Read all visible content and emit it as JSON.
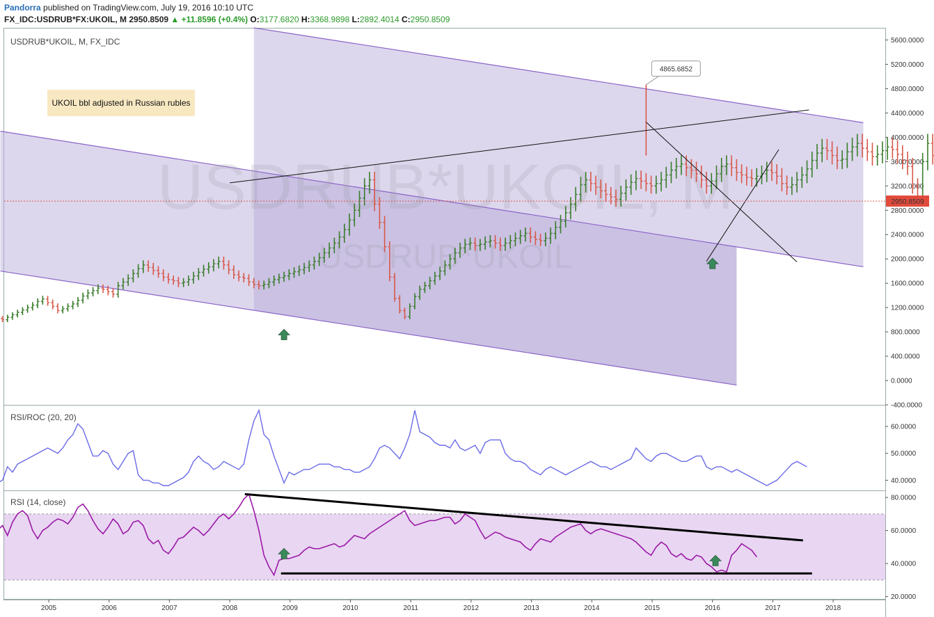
{
  "header": {
    "author": "Pandorra",
    "published": "published on TradingView.com, July 19, 2016 10:10 UTC",
    "symbol": "FX_IDC:USDRUB*FX:UKOIL, M",
    "last": "2950.8509",
    "change_arrow": "▲",
    "change": "+11.8596 (+0.4%)",
    "o_label": "O:",
    "o_value": "3177.6820",
    "h_label": "H:",
    "h_value": "3368.9898",
    "l_label": "L:",
    "l_value": "2892.4014",
    "c_label": "C:",
    "c_value": "2950.8509"
  },
  "annotation": "UKOIL bbl adjusted in Russian rubles",
  "colors": {
    "up": "#3a7d2c",
    "down": "#d8584a",
    "channel_fill": "#b3a6d8",
    "channel_line": "#8a63c8",
    "rsi_roc_line": "#6a6ae8",
    "rsi_line": "#9a1aa8",
    "rsi_band": "#e9d6f2",
    "price_label_bg": "#e24b3c",
    "marker": "#3a8a5a"
  },
  "chart_data": [
    {
      "type": "bar",
      "title": "USDRUB*UKOIL, M, FX_IDC",
      "watermark_symbol": "USDRUB*UKOIL, M",
      "watermark_name": "USDRUB*UKOIL",
      "ylim": [
        -400,
        5800
      ],
      "yticks": [
        "5600.0000",
        "5200.0000",
        "4800.0000",
        "4400.0000",
        "4000.0000",
        "3600.0000",
        "3200.0000",
        "2800.0000",
        "2400.0000",
        "2000.0000",
        "1600.0000",
        "1200.0000",
        "800.0000",
        "400.0000",
        "0.0000",
        "-400.0000"
      ],
      "xlabels": [
        "2005",
        "2006",
        "2007",
        "2008",
        "2009",
        "2010",
        "2011",
        "2012",
        "2013",
        "2014",
        "2015",
        "2016",
        "2017",
        "2018"
      ],
      "last_price": "2950.8509",
      "peak_label": "4865.6852",
      "channel_upper": [
        [
          2008.4,
          5800
        ],
        [
          2018.5,
          4240
        ]
      ],
      "channel_lower": [
        [
          2004.2,
          4100
        ],
        [
          2018.5,
          1870
        ]
      ],
      "channel_outer_low": [
        [
          2004.2,
          1800
        ],
        [
          2016.4,
          -75
        ]
      ],
      "trendlines": [
        [
          [
            2008.0,
            3250
          ],
          [
            2017.6,
            4450
          ]
        ],
        [
          [
            2014.9,
            4250
          ],
          [
            2017.4,
            1950
          ]
        ],
        [
          [
            2015.9,
            1960
          ],
          [
            2017.1,
            3800
          ]
        ]
      ],
      "markers": [
        [
          2008.9,
          750
        ],
        [
          2016.0,
          1920
        ]
      ],
      "peak_point": [
        2014.9,
        4865.6852
      ],
      "ohlc_monthly_close": [
        1020,
        1000,
        1040,
        1080,
        1120,
        1160,
        1200,
        1240,
        1300,
        1340,
        1280,
        1220,
        1150,
        1180,
        1220,
        1260,
        1320,
        1390,
        1440,
        1480,
        1520,
        1500,
        1460,
        1420,
        1560,
        1620,
        1680,
        1760,
        1840,
        1900,
        1860,
        1810,
        1760,
        1700,
        1660,
        1640,
        1600,
        1620,
        1660,
        1720,
        1780,
        1830,
        1870,
        1920,
        1960,
        1900,
        1820,
        1740,
        1700,
        1680,
        1620,
        1580,
        1560,
        1580,
        1620,
        1660,
        1690,
        1720,
        1760,
        1790,
        1820,
        1860,
        1900,
        1960,
        2020,
        2100,
        2180,
        2260,
        2360,
        2480,
        2640,
        2800,
        3000,
        3200,
        3300,
        2900,
        2600,
        2200,
        1700,
        1350,
        1150,
        1050,
        1220,
        1380,
        1500,
        1560,
        1640,
        1720,
        1800,
        1900,
        2000,
        2100,
        2180,
        2240,
        2260,
        2220,
        2240,
        2280,
        2300,
        2260,
        2220,
        2260,
        2300,
        2340,
        2380,
        2420,
        2360,
        2320,
        2300,
        2340,
        2420,
        2520,
        2620,
        2760,
        2900,
        3060,
        3220,
        3300,
        3240,
        3180,
        3120,
        3060,
        3020,
        2980,
        3080,
        3180,
        3260,
        3320,
        3280,
        3240,
        3200,
        3240,
        3300,
        3380,
        3460,
        3520,
        3560,
        3500,
        3460,
        3400,
        3300,
        3200,
        3280,
        3400,
        3520,
        3560,
        3500,
        3420,
        3380,
        3340,
        3320,
        3360,
        3400,
        3460,
        3420,
        3360,
        3240,
        3180,
        3220,
        3300,
        3380,
        3480,
        3620,
        3740,
        3820,
        3780,
        3700,
        3620,
        3640,
        3760,
        3840,
        3900,
        3820,
        3760,
        3680,
        3720,
        3780,
        3840,
        3800,
        3720,
        3620,
        3520,
        3200,
        3000,
        3600,
        3900,
        3700,
        3540,
        3380,
        3400,
        3560,
        3660,
        3500,
        3320,
        3200,
        3080,
        3000,
        2860,
        2640,
        2380,
        2500,
        2700,
        2820,
        2760,
        2900,
        3060,
        3200,
        3260,
        3177,
        2950
      ],
      "ohlc_start": 2004.15
    },
    {
      "type": "line",
      "title": "RSI/ROC (20, 20)",
      "ylim": [
        37,
        67
      ],
      "yticks": [
        "60.0000",
        "50.0000",
        "40.0000"
      ],
      "start": 2004.15,
      "values": [
        39,
        40,
        45,
        43,
        46,
        47,
        48,
        49,
        50,
        51,
        52,
        51,
        50,
        52,
        55,
        57,
        61,
        59,
        54,
        49,
        49,
        51,
        50,
        46,
        44,
        47,
        50,
        51,
        42,
        40,
        40,
        39,
        39,
        38,
        38,
        39,
        40,
        41,
        43,
        47,
        49,
        47,
        46,
        44,
        45,
        47,
        46,
        45,
        44,
        46,
        55,
        62,
        66,
        57,
        55,
        49,
        44,
        39,
        43,
        42,
        43,
        44,
        44,
        45,
        46,
        46,
        46,
        45,
        45,
        44,
        44,
        43,
        43,
        44,
        45,
        48,
        52,
        53,
        52,
        50,
        48,
        52,
        57,
        66,
        58,
        57,
        56,
        54,
        53,
        53,
        52,
        55,
        52,
        51,
        52,
        53,
        50,
        54,
        55,
        55,
        55,
        50,
        48,
        47,
        47,
        46,
        44,
        43,
        42,
        44,
        45,
        44,
        43,
        42,
        43,
        44,
        45,
        46,
        47,
        46,
        45,
        45,
        44,
        45,
        46,
        47,
        48,
        52,
        50,
        48,
        47,
        49,
        50,
        50,
        49,
        48,
        47,
        47,
        48,
        49,
        49,
        45,
        44,
        45,
        45,
        44,
        43,
        44,
        43,
        42,
        41,
        40,
        39,
        38,
        39,
        40,
        42,
        44,
        46,
        47,
        46,
        45
      ]
    },
    {
      "type": "line",
      "title": "RSI (14, close)",
      "ylim": [
        19,
        83
      ],
      "yticks": [
        "80.0000",
        "60.0000",
        "40.0000",
        "20.0000"
      ],
      "bands": [
        30,
        70
      ],
      "start": 2004.15,
      "values": [
        60,
        63,
        57,
        65,
        70,
        72,
        69,
        60,
        55,
        60,
        62,
        65,
        67,
        66,
        64,
        68,
        74,
        76,
        72,
        66,
        61,
        58,
        62,
        67,
        64,
        58,
        60,
        65,
        66,
        63,
        55,
        52,
        54,
        48,
        46,
        50,
        55,
        56,
        59,
        62,
        60,
        57,
        60,
        64,
        68,
        70,
        67,
        70,
        74,
        79,
        82,
        72,
        60,
        45,
        38,
        33,
        42,
        43,
        43,
        44,
        45,
        48,
        50,
        49,
        49,
        50,
        51,
        52,
        50,
        51,
        54,
        57,
        56,
        55,
        58,
        60,
        62,
        64,
        66,
        68,
        70,
        72,
        66,
        63,
        64,
        65,
        66,
        66,
        67,
        68,
        68,
        64,
        66,
        70,
        68,
        66,
        60,
        55,
        57,
        59,
        58,
        56,
        55,
        54,
        53,
        50,
        48,
        52,
        55,
        54,
        53,
        56,
        58,
        60,
        62,
        63,
        64,
        60,
        58,
        60,
        61,
        60,
        59,
        58,
        57,
        56,
        55,
        53,
        50,
        47,
        45,
        50,
        53,
        51,
        46,
        44,
        46,
        43,
        42,
        45,
        44,
        40,
        38,
        35,
        36,
        35,
        45,
        48,
        52,
        50,
        48,
        44
      ]
    }
  ]
}
